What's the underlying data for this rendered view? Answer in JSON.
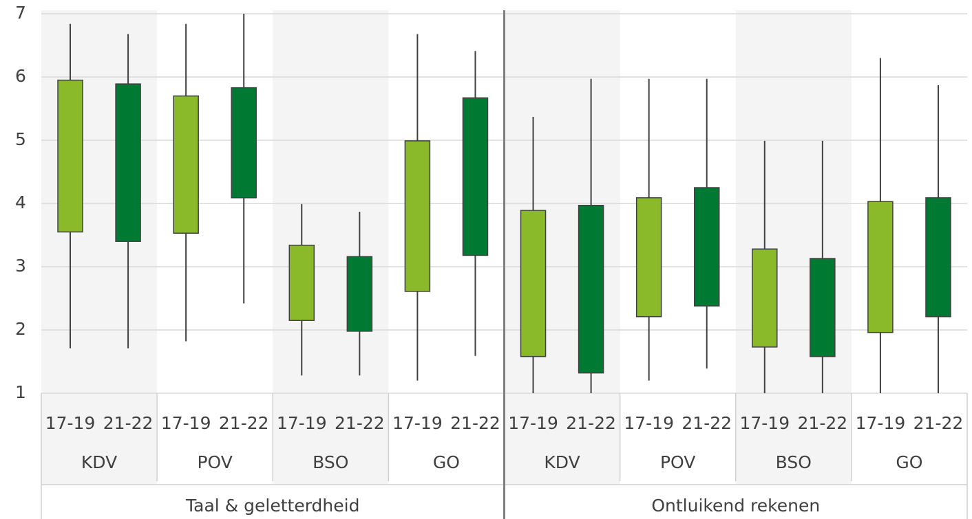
{
  "chart_data": {
    "type": "box",
    "categories": [
      "17-19",
      "21-22",
      "17-19",
      "21-22",
      "17-19",
      "21-22",
      "17-19",
      "21-22",
      "17-19",
      "21-22",
      "17-19",
      "21-22",
      "17-19",
      "21-22",
      "17-19",
      "21-22"
    ],
    "subcategories": [
      "KDV",
      "POV",
      "BSO",
      "GO",
      "KDV",
      "POV",
      "BSO",
      "GO"
    ],
    "groups": [
      "Taal & geletterdheid",
      "Ontluikend rekenen"
    ],
    "series": [
      {
        "color": "#8aba2a",
        "low": [
          1.71,
          1.82,
          1.28,
          1.2,
          1.0,
          1.2,
          1.0,
          1.0
        ],
        "q1": [
          3.55,
          3.53,
          2.15,
          2.61,
          1.58,
          2.21,
          1.73,
          1.96
        ],
        "q3": [
          5.95,
          5.7,
          3.34,
          4.99,
          3.89,
          4.09,
          3.28,
          4.03
        ],
        "high": [
          6.84,
          6.84,
          3.99,
          6.68,
          5.37,
          5.97,
          4.99,
          6.3
        ]
      },
      {
        "color": "#007a33",
        "low": [
          1.71,
          2.42,
          1.28,
          1.59,
          1.0,
          1.39,
          1.0,
          1.0
        ],
        "q1": [
          3.4,
          4.09,
          1.98,
          3.18,
          1.32,
          2.38,
          1.58,
          2.21
        ],
        "q3": [
          5.89,
          5.83,
          3.16,
          5.67,
          3.97,
          4.25,
          3.13,
          4.09
        ],
        "high": [
          6.68,
          7.0,
          3.87,
          6.41,
          5.97,
          5.97,
          4.99,
          5.87
        ]
      }
    ],
    "ylim": [
      1,
      7
    ],
    "yticks": [
      1,
      2,
      3,
      4,
      5,
      6,
      7
    ],
    "grid": true
  }
}
